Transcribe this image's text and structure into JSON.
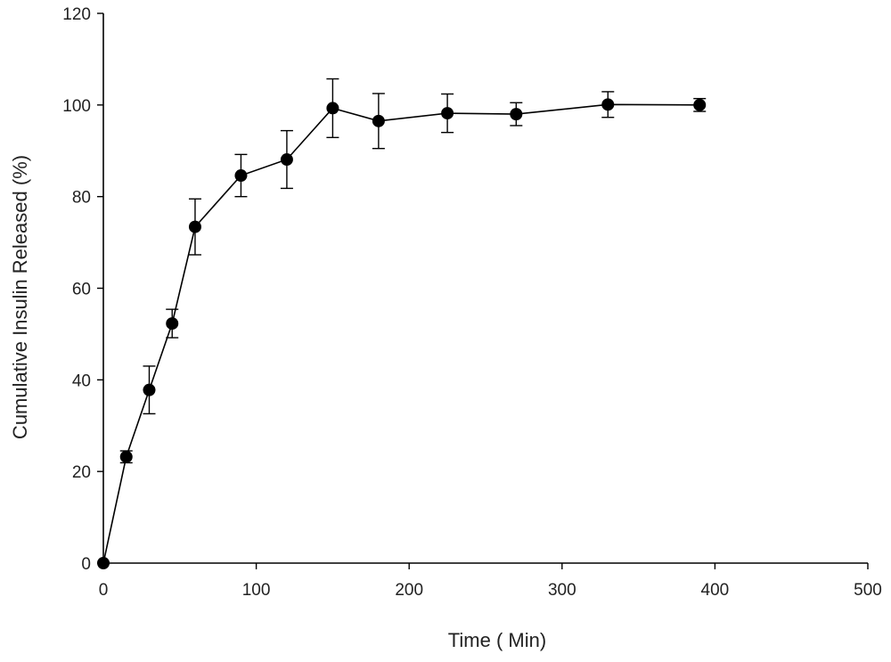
{
  "chart_data": {
    "type": "line",
    "title": "",
    "xlabel": "Time ( Min)",
    "ylabel": "Cumulative Insulin Released (%)",
    "xlim": [
      0,
      500
    ],
    "ylim": [
      0,
      120
    ],
    "x_ticks": [
      0,
      100,
      200,
      300,
      400,
      500
    ],
    "x_tick_labels": [
      "0",
      "100",
      "200",
      "300",
      "400",
      "500"
    ],
    "y_ticks": [
      0,
      20,
      40,
      60,
      80,
      100,
      120
    ],
    "y_tick_labels": [
      "0",
      "20",
      "40",
      "60",
      "80",
      "100",
      "120"
    ],
    "grid": false,
    "series": [
      {
        "x": [
          0,
          15,
          30,
          45,
          60,
          90,
          120,
          150,
          180,
          225,
          270,
          330,
          390
        ],
        "y": [
          0,
          23.2,
          37.8,
          52.3,
          73.4,
          84.6,
          88.1,
          99.3,
          96.5,
          98.2,
          98.0,
          100.1,
          100.0
        ],
        "error": [
          0,
          1.3,
          5.2,
          3.1,
          6.1,
          4.6,
          6.3,
          6.4,
          6.0,
          4.2,
          2.5,
          2.8,
          1.4
        ]
      }
    ]
  }
}
